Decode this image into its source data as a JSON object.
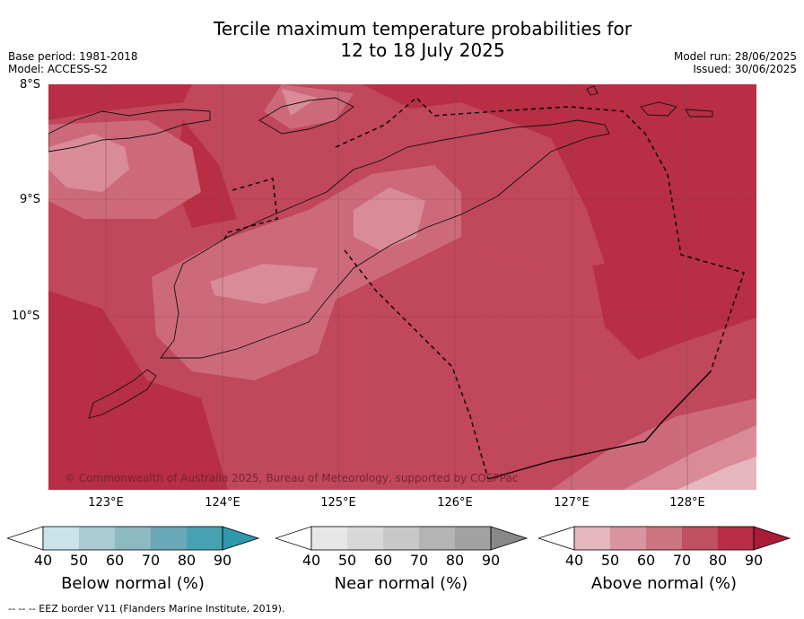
{
  "title_line1": "Tercile maximum temperature probabilities for",
  "title_line2": "12 to 18 July 2025",
  "base_period": "Base period: 1981-2018",
  "model": "Model: ACCESS-S2",
  "model_run": "Model run: 28/06/2025",
  "issued": "Issued: 30/06/2025",
  "lat_labels": [
    "8°S",
    "9°S",
    "10°S"
  ],
  "lon_labels": [
    "123°E",
    "124°E",
    "125°E",
    "126°E",
    "127°E",
    "128°E"
  ],
  "copyright": "© Commonwealth of Australia 2025, Bureau of Meteorology, supported by COSPPac",
  "legends": [
    {
      "title": "Below normal (%)",
      "ticks": [
        "40",
        "50",
        "60",
        "70",
        "80",
        "90"
      ],
      "colors": [
        "#ffffff",
        "#c9e3e9",
        "#a9cbd1",
        "#8db9c3",
        "#69a8b6",
        "#46a2b2",
        "#2f98ad"
      ]
    },
    {
      "title": "Near normal (%)",
      "ticks": [
        "40",
        "50",
        "60",
        "70",
        "80",
        "90"
      ],
      "colors": [
        "#ffffff",
        "#e7e7e7",
        "#d8d8d8",
        "#c8c8c8",
        "#b4b4b4",
        "#a2a2a2",
        "#888888"
      ]
    },
    {
      "title": "Above normal (%)",
      "ticks": [
        "40",
        "50",
        "60",
        "70",
        "80",
        "90"
      ],
      "colors": [
        "#ffffff",
        "#e5b7bf",
        "#d9949f",
        "#cd7481",
        "#c0505f",
        "#b72d45",
        "#a91b38"
      ]
    }
  ],
  "footer": "--  --  -- EEZ border V11 (Flanders Marine Institute, 2019).",
  "colors": {
    "above_60_70": "#cd6a7a",
    "above_70_80": "#c1475b",
    "above_80_90": "#b72e45",
    "above_50_60": "#d98c97"
  }
}
